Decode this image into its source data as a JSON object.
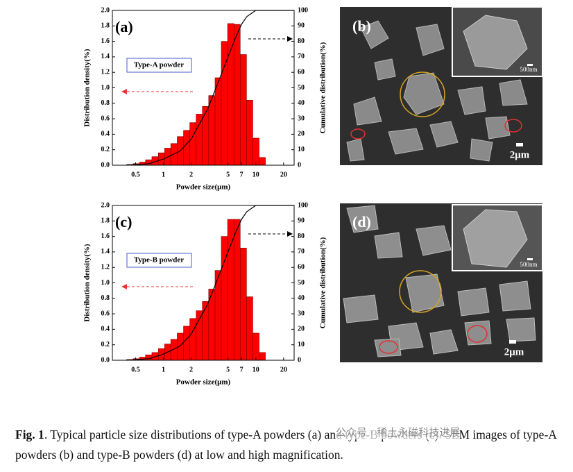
{
  "chart_data": [
    {
      "type": "histogram",
      "panel_label": "(a)",
      "legend_label": "Type-A powder",
      "xlabel": "Powder size(μm)",
      "ylabel": "Distribution density(%)",
      "y2label": "Cumulative distribution(%)",
      "log_x": true,
      "color": "#ff0000",
      "bins": [
        0.4,
        0.47,
        0.55,
        0.64,
        0.75,
        0.88,
        1.03,
        1.2,
        1.41,
        1.65,
        1.93,
        2.26,
        2.64,
        3.09,
        3.62,
        4.23,
        4.95,
        5.8,
        6.78,
        7.93,
        9.28,
        10.86,
        12.7
      ],
      "values": [
        0.01,
        0.02,
        0.04,
        0.07,
        0.11,
        0.16,
        0.22,
        0.28,
        0.37,
        0.45,
        0.55,
        0.66,
        0.76,
        0.9,
        1.13,
        1.6,
        1.83,
        1.82,
        1.43,
        0.84,
        0.35,
        0.1
      ],
      "series": [
        {
          "color": "#000000",
          "axis": "y2",
          "x": [
            0.4,
            0.7,
            1,
            1.5,
            2,
            3,
            4,
            5,
            6,
            7,
            8,
            10,
            12,
            26
          ],
          "values": [
            0,
            1,
            4,
            9,
            17,
            36,
            55,
            70,
            82,
            91,
            96,
            100,
            100,
            100
          ]
        }
      ],
      "xlim": [
        0.28,
        26
      ],
      "ylim": [
        0,
        2
      ],
      "y2lim": [
        0,
        100
      ],
      "xticks": [
        0.5,
        1,
        2,
        5,
        7,
        10,
        20
      ],
      "yticks": [
        {
          "value": 0,
          "label": "0.0"
        },
        0.2,
        0.4,
        0.6,
        0.8,
        {
          "value": 1,
          "label": "1.0"
        },
        1.2,
        1.4,
        1.6,
        1.8,
        {
          "value": 2,
          "label": "2.0"
        }
      ],
      "y2ticks": [
        0,
        10,
        20,
        30,
        40,
        50,
        60,
        70,
        80,
        90,
        100
      ]
    },
    {
      "type": "histogram",
      "panel_label": "(c)",
      "legend_label": "Type-B powder",
      "xlabel": "Powder size(μm)",
      "ylabel": "Distribution density(%)",
      "y2label": "Cumulative distribution(%)",
      "log_x": true,
      "color": "#ff0000",
      "bins": [
        0.4,
        0.47,
        0.55,
        0.64,
        0.75,
        0.88,
        1.03,
        1.2,
        1.41,
        1.65,
        1.93,
        2.26,
        2.64,
        3.09,
        3.62,
        4.23,
        4.95,
        5.8,
        6.78,
        7.93,
        9.28,
        10.86,
        12.7
      ],
      "values": [
        0.01,
        0.02,
        0.04,
        0.07,
        0.1,
        0.15,
        0.21,
        0.27,
        0.35,
        0.44,
        0.54,
        0.64,
        0.76,
        0.92,
        1.16,
        1.6,
        1.82,
        1.82,
        1.45,
        0.82,
        0.35,
        0.1
      ],
      "series": [
        {
          "color": "#000000",
          "axis": "y2",
          "x": [
            0.4,
            0.7,
            1,
            1.5,
            2,
            3,
            4,
            5,
            6,
            7,
            8,
            10,
            12,
            26
          ],
          "values": [
            0,
            1,
            4,
            9,
            17,
            36,
            55,
            70,
            82,
            91,
            96,
            100,
            100,
            100
          ]
        }
      ],
      "xlim": [
        0.28,
        26
      ],
      "ylim": [
        0,
        2
      ],
      "y2lim": [
        0,
        100
      ],
      "xticks": [
        0.5,
        1,
        2,
        5,
        7,
        10,
        20
      ],
      "yticks": [
        {
          "value": 0,
          "label": "0.0"
        },
        0.2,
        0.4,
        0.6,
        0.8,
        {
          "value": 1,
          "label": "1.0"
        },
        1.2,
        1.4,
        1.6,
        1.8,
        {
          "value": 2,
          "label": "2.0"
        }
      ],
      "y2ticks": [
        0,
        10,
        20,
        30,
        40,
        50,
        60,
        70,
        80,
        90,
        100
      ]
    }
  ],
  "images": [
    {
      "panel_label": "(b)",
      "scale_bar": "2μm",
      "inset_scale_bar": "500nm"
    },
    {
      "panel_label": "(d)",
      "scale_bar": "2μm",
      "inset_scale_bar": "500nm"
    }
  ],
  "caption": {
    "figure_label": "Fig. 1",
    "text": ". Typical particle size distributions of type-A powders (a) and type-B powders (c). SEM images of type-A powders (b) and type-B powders (d) at low and high magnification."
  },
  "watermark": "公众号 · 稀土永磁科技进展"
}
